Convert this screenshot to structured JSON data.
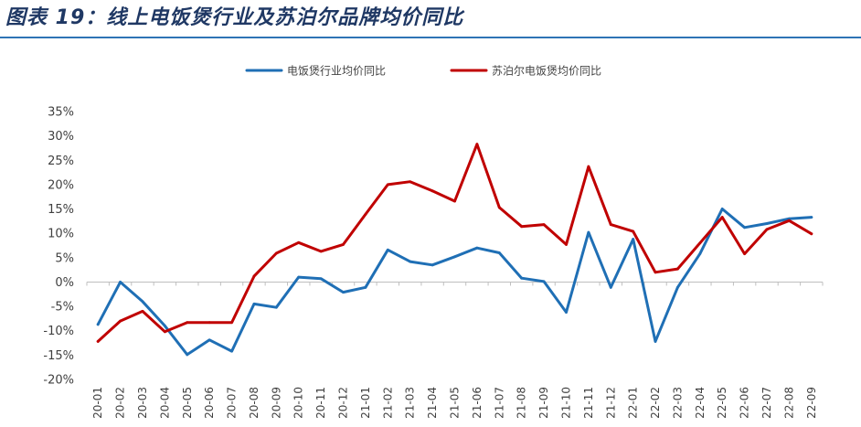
{
  "figure": {
    "title": "图表 19：线上电饭煲行业及苏泊尔品牌均价同比"
  },
  "chart_data": {
    "type": "line",
    "title": "",
    "xlabel": "",
    "ylabel": "",
    "x": [
      "20-01",
      "20-02",
      "20-03",
      "20-04",
      "20-05",
      "20-06",
      "20-07",
      "20-08",
      "20-09",
      "20-10",
      "20-11",
      "20-12",
      "21-01",
      "21-02",
      "21-03",
      "21-04",
      "21-05",
      "21-06",
      "21-07",
      "21-08",
      "21-09",
      "21-10",
      "21-11",
      "21-12",
      "22-01",
      "22-02",
      "22-03",
      "22-04",
      "22-05",
      "22-06",
      "22-07",
      "22-08",
      "22-09"
    ],
    "ylim": [
      -0.2,
      0.35
    ],
    "yticks": [
      -0.2,
      -0.15,
      -0.1,
      -0.05,
      0,
      0.05,
      0.1,
      0.15,
      0.2,
      0.25,
      0.3,
      0.35
    ],
    "ytick_labels": [
      "-20%",
      "-15%",
      "-10%",
      "-5%",
      "0%",
      "5%",
      "10%",
      "15%",
      "20%",
      "25%",
      "30%",
      "35%"
    ],
    "grid": false,
    "legend_position": "top-center",
    "series": [
      {
        "name": "电饭煲行业均价同比",
        "color": "#1f6fb5",
        "values": [
          -0.087,
          0.0,
          -0.04,
          -0.09,
          -0.149,
          -0.119,
          -0.142,
          -0.045,
          -0.052,
          0.01,
          0.007,
          -0.021,
          -0.011,
          0.066,
          0.042,
          0.035,
          0.052,
          0.07,
          0.06,
          0.008,
          0.001,
          -0.062,
          0.102,
          -0.011,
          0.088,
          -0.122,
          -0.011,
          0.058,
          0.15,
          0.112,
          0.12,
          0.13,
          0.133
        ]
      },
      {
        "name": "苏泊尔电饭煲均价同比",
        "color": "#c00000",
        "values": [
          -0.122,
          -0.08,
          -0.06,
          -0.102,
          -0.083,
          -0.083,
          -0.083,
          0.012,
          0.059,
          0.081,
          0.063,
          0.077,
          0.139,
          0.2,
          0.206,
          0.187,
          0.166,
          0.283,
          0.153,
          0.114,
          0.118,
          0.077,
          0.237,
          0.118,
          0.104,
          0.02,
          0.027,
          0.08,
          0.133,
          0.058,
          0.108,
          0.126,
          0.099
        ]
      }
    ]
  }
}
